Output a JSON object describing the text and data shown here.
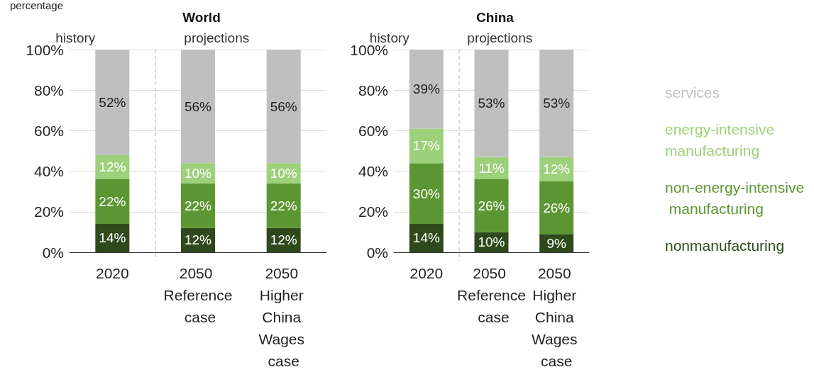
{
  "chart_data": [
    {
      "type": "bar",
      "title": "World",
      "ylabel": "percentage",
      "stacked": true,
      "categories": [
        "2020",
        "2050 Reference case",
        "2050 Higher China Wages case"
      ],
      "series": [
        {
          "color": "#2e4a1c",
          "values": [
            14,
            12,
            12
          ],
          "value_labels": [
            "14%",
            "12%",
            "12%"
          ]
        },
        {
          "color": "#5c9632",
          "values": [
            22,
            22,
            22
          ],
          "value_labels": [
            "22%",
            "22%",
            "22%"
          ]
        },
        {
          "color": "#9dd07a",
          "values": [
            12,
            10,
            10
          ],
          "value_labels": [
            "12%",
            "10%",
            "10%"
          ]
        },
        {
          "color": "#bfbfbf",
          "values": [
            52,
            56,
            56
          ],
          "value_labels": [
            "52%",
            "56%",
            "56%"
          ]
        }
      ],
      "ylim": [
        0,
        100
      ],
      "yticks": [
        {
          "value": 0,
          "label": "0%"
        },
        {
          "value": 20,
          "label": "20%"
        },
        {
          "value": 40,
          "label": "40%"
        },
        {
          "value": 60,
          "label": "60%"
        },
        {
          "value": 80,
          "label": "80%"
        },
        {
          "value": 100,
          "label": "100%"
        }
      ],
      "grid": "y",
      "legend": false,
      "annotations": [
        "history",
        "projections"
      ]
    },
    {
      "type": "bar",
      "title": "China",
      "stacked": true,
      "categories": [
        "2020",
        "2050 Reference case",
        "2050 Higher China Wages case"
      ],
      "series": [
        {
          "name": "nonmanufacturing",
          "color": "#2e4a1c",
          "values": [
            14,
            10,
            9
          ],
          "value_labels": [
            "14%",
            "10%",
            "9%"
          ]
        },
        {
          "name": "non-energy-intensive manufacturing",
          "color": "#5c9632",
          "values": [
            30,
            26,
            26
          ],
          "value_labels": [
            "30%",
            "26%",
            "26%"
          ]
        },
        {
          "name": "energy-intensive manufacturing",
          "color": "#9dd07a",
          "values": [
            17,
            11,
            12
          ],
          "value_labels": [
            "17%",
            "11%",
            "12%"
          ]
        },
        {
          "name": "services",
          "color": "#bfbfbf",
          "values": [
            39,
            53,
            53
          ],
          "value_labels": [
            "39%",
            "53%",
            "53%"
          ]
        }
      ],
      "ylim": [
        0,
        100
      ],
      "yticks": [
        {
          "value": 0,
          "label": "0%"
        },
        {
          "value": 20,
          "label": "20%"
        },
        {
          "value": 40,
          "label": "40%"
        },
        {
          "value": 60,
          "label": "60%"
        },
        {
          "value": 80,
          "label": "80%"
        },
        {
          "value": 100,
          "label": "100%"
        }
      ],
      "grid": "y",
      "legend": "right",
      "annotations": [
        "history",
        "projections"
      ]
    }
  ]
}
